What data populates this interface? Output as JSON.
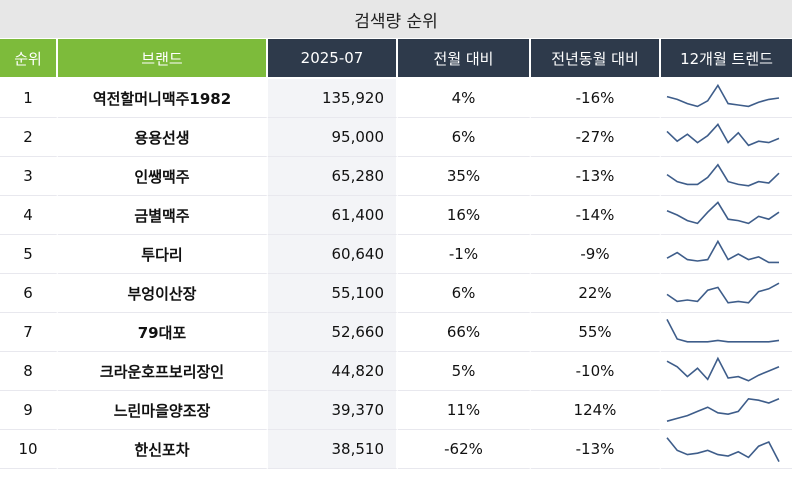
{
  "title": "검색량 순위",
  "headers": {
    "rank": "순위",
    "brand": "브랜드",
    "month": "2025-07",
    "mom": "전월 대비",
    "yoy": "전년동월 대비",
    "trend": "12개월 트렌드"
  },
  "colors": {
    "green": "#7dbb3b",
    "navy": "#2e3a4b",
    "line": "#3e5d8a"
  },
  "rows": [
    {
      "rank": "1",
      "brand": "역전할머니맥주1982",
      "value": "135,920",
      "mom": "4%",
      "yoy": "-16%",
      "trend": [
        0.55,
        0.45,
        0.3,
        0.2,
        0.4,
        0.95,
        0.3,
        0.25,
        0.2,
        0.35,
        0.45,
        0.5
      ]
    },
    {
      "rank": "2",
      "brand": "용용선생",
      "value": "95,000",
      "mom": "6%",
      "yoy": "-27%",
      "trend": [
        0.7,
        0.35,
        0.6,
        0.3,
        0.55,
        0.95,
        0.3,
        0.65,
        0.2,
        0.35,
        0.3,
        0.45
      ]
    },
    {
      "rank": "3",
      "brand": "인쌩맥주",
      "value": "65,280",
      "mom": "35%",
      "yoy": "-13%",
      "trend": [
        0.55,
        0.3,
        0.2,
        0.2,
        0.45,
        0.9,
        0.3,
        0.2,
        0.15,
        0.3,
        0.25,
        0.6
      ]
    },
    {
      "rank": "4",
      "brand": "금별맥주",
      "value": "61,400",
      "mom": "16%",
      "yoy": "-14%",
      "trend": [
        0.65,
        0.5,
        0.3,
        0.2,
        0.6,
        0.95,
        0.35,
        0.3,
        0.2,
        0.45,
        0.35,
        0.6
      ]
    },
    {
      "rank": "5",
      "brand": "투다리",
      "value": "60,640",
      "mom": "-1%",
      "yoy": "-9%",
      "trend": [
        0.35,
        0.55,
        0.3,
        0.25,
        0.3,
        0.95,
        0.3,
        0.5,
        0.3,
        0.4,
        0.2,
        0.2
      ]
    },
    {
      "rank": "6",
      "brand": "부엉이산장",
      "value": "55,100",
      "mom": "6%",
      "yoy": "22%",
      "trend": [
        0.45,
        0.2,
        0.25,
        0.2,
        0.6,
        0.7,
        0.15,
        0.2,
        0.15,
        0.55,
        0.65,
        0.85
      ]
    },
    {
      "rank": "7",
      "brand": "79대포",
      "value": "52,660",
      "mom": "66%",
      "yoy": "55%",
      "trend": [
        0.95,
        0.25,
        0.15,
        0.15,
        0.15,
        0.2,
        0.15,
        0.15,
        0.15,
        0.15,
        0.15,
        0.2
      ]
    },
    {
      "rank": "8",
      "brand": "크라운호프보리장인",
      "value": "44,820",
      "mom": "5%",
      "yoy": "-10%",
      "trend": [
        0.85,
        0.65,
        0.3,
        0.6,
        0.2,
        0.95,
        0.25,
        0.3,
        0.15,
        0.35,
        0.5,
        0.65
      ]
    },
    {
      "rank": "9",
      "brand": "느린마을양조장",
      "value": "39,370",
      "mom": "11%",
      "yoy": "124%",
      "trend": [
        0.1,
        0.2,
        0.3,
        0.45,
        0.6,
        0.4,
        0.35,
        0.45,
        0.9,
        0.85,
        0.75,
        0.9
      ]
    },
    {
      "rank": "10",
      "brand": "한신포차",
      "value": "38,510",
      "mom": "-62%",
      "yoy": "-13%",
      "trend": [
        0.9,
        0.45,
        0.3,
        0.35,
        0.45,
        0.3,
        0.25,
        0.4,
        0.2,
        0.6,
        0.75,
        0.05
      ]
    }
  ]
}
